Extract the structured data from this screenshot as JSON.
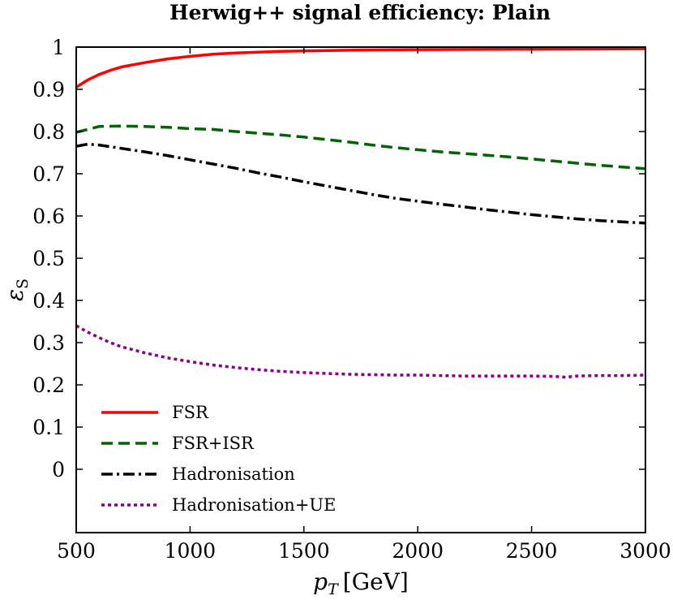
{
  "chart_data": {
    "type": "line",
    "title": "Herwig++ signal efficiency: Plain",
    "xlabel": "p_T [GeV]",
    "ylabel": "ε_S",
    "xlim": [
      500,
      3000
    ],
    "ylim": [
      -0.15,
      1.0
    ],
    "xticks": [
      500,
      1000,
      1500,
      2000,
      2500,
      3000
    ],
    "yticks": [
      0,
      0.1,
      0.2,
      0.3,
      0.4,
      0.5,
      0.6,
      0.7,
      0.8,
      0.9,
      1
    ],
    "ytick_labels": [
      "0",
      "0.1",
      "0.2",
      "0.3",
      "0.4",
      "0.5",
      "0.6",
      "0.7",
      "0.8",
      "0.9",
      "1"
    ],
    "grid": false,
    "legend_position": "bottom-left",
    "series": [
      {
        "name": "FSR",
        "color": "#ff0000",
        "dash": "solid",
        "x": [
          500,
          550,
          600,
          650,
          700,
          800,
          900,
          1000,
          1100,
          1200,
          1300,
          1400,
          1500,
          1750,
          2000,
          2500,
          3000
        ],
        "y": [
          0.905,
          0.922,
          0.935,
          0.945,
          0.953,
          0.963,
          0.972,
          0.978,
          0.983,
          0.986,
          0.988,
          0.99,
          0.991,
          0.993,
          0.994,
          0.995,
          0.996
        ]
      },
      {
        "name": "FSR+ISR",
        "color": "#006400",
        "dash": "dashed",
        "x": [
          500,
          600,
          700,
          800,
          900,
          1000,
          1100,
          1200,
          1300,
          1400,
          1500,
          1600,
          1700,
          1800,
          1900,
          2000,
          2100,
          2200,
          2300,
          2400,
          2500,
          2600,
          2700,
          2800,
          2900,
          3000
        ],
        "y": [
          0.798,
          0.812,
          0.813,
          0.812,
          0.81,
          0.807,
          0.805,
          0.8,
          0.796,
          0.792,
          0.787,
          0.781,
          0.775,
          0.768,
          0.762,
          0.757,
          0.752,
          0.748,
          0.744,
          0.74,
          0.735,
          0.73,
          0.725,
          0.72,
          0.716,
          0.712
        ]
      },
      {
        "name": "Hadronisation",
        "color": "#000000",
        "dash": "dashdot",
        "x": [
          500,
          550,
          600,
          700,
          800,
          900,
          1000,
          1100,
          1200,
          1300,
          1400,
          1500,
          1600,
          1700,
          1800,
          1900,
          2000,
          2100,
          2200,
          2300,
          2400,
          2500,
          2600,
          2700,
          2800,
          2900,
          3000
        ],
        "y": [
          0.765,
          0.77,
          0.768,
          0.76,
          0.752,
          0.743,
          0.733,
          0.723,
          0.713,
          0.702,
          0.692,
          0.681,
          0.671,
          0.661,
          0.651,
          0.642,
          0.635,
          0.628,
          0.622,
          0.615,
          0.609,
          0.603,
          0.598,
          0.593,
          0.589,
          0.586,
          0.583
        ]
      },
      {
        "name": "Hadronisation+UE",
        "color": "#8b008b",
        "dash": "dotted",
        "x": [
          500,
          550,
          600,
          650,
          700,
          800,
          900,
          1000,
          1100,
          1200,
          1300,
          1400,
          1500,
          1600,
          1700,
          1800,
          1900,
          2000,
          2100,
          2200,
          2300,
          2400,
          2500,
          2600,
          2650,
          2700,
          2800,
          2900,
          3000
        ],
        "y": [
          0.34,
          0.325,
          0.312,
          0.3,
          0.29,
          0.276,
          0.264,
          0.255,
          0.247,
          0.241,
          0.236,
          0.232,
          0.229,
          0.227,
          0.225,
          0.224,
          0.223,
          0.223,
          0.222,
          0.221,
          0.221,
          0.221,
          0.221,
          0.22,
          0.218,
          0.221,
          0.222,
          0.222,
          0.223
        ]
      }
    ]
  }
}
